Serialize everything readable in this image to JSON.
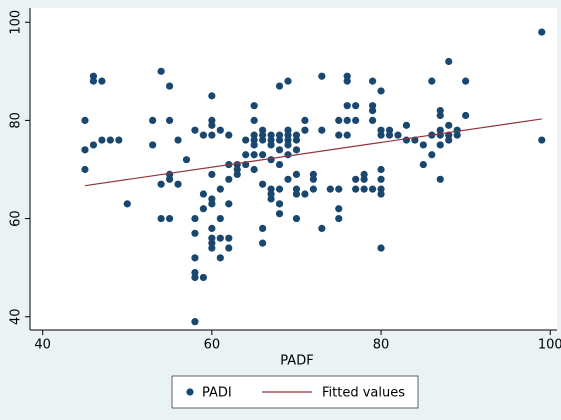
{
  "chart_data": {
    "type": "scatter",
    "xlabel": "PADF",
    "xlim": [
      38.5,
      100.8
    ],
    "ylim": [
      37.3,
      102.9
    ],
    "xticks": [
      40,
      60,
      80,
      100
    ],
    "yticks": [
      40,
      60,
      80,
      100
    ],
    "series": [
      {
        "name": "PADI",
        "style": "markers",
        "color": "#1a476f",
        "x": [
          45,
          45,
          45,
          46,
          46,
          46,
          47,
          47,
          48,
          49,
          50,
          53,
          53,
          54,
          54,
          54,
          55,
          55,
          55,
          55,
          55,
          56,
          56,
          57,
          58,
          58,
          58,
          58,
          58,
          58,
          58,
          59,
          59,
          59,
          59,
          60,
          60,
          60,
          60,
          60,
          60,
          60,
          60,
          60,
          60,
          60,
          61,
          61,
          61,
          61,
          61,
          62,
          62,
          62,
          62,
          62,
          62,
          63,
          63,
          63,
          64,
          64,
          64,
          65,
          65,
          65,
          65,
          65,
          65,
          65,
          66,
          66,
          66,
          66,
          66,
          66,
          66,
          67,
          67,
          67,
          67,
          67,
          67,
          67,
          68,
          68,
          68,
          68,
          68,
          68,
          68,
          68,
          69,
          69,
          69,
          69,
          69,
          69,
          69,
          70,
          70,
          70,
          70,
          70,
          70,
          70,
          71,
          71,
          71,
          72,
          72,
          72,
          73,
          73,
          73,
          74,
          75,
          75,
          75,
          75,
          75,
          76,
          76,
          76,
          76,
          76,
          77,
          77,
          77,
          77,
          78,
          78,
          78,
          79,
          79,
          79,
          79,
          79,
          80,
          80,
          80,
          80,
          80,
          80,
          80,
          80,
          81,
          81,
          82,
          83,
          83,
          84,
          85,
          85,
          86,
          86,
          86,
          87,
          87,
          87,
          87,
          87,
          87,
          88,
          88,
          88,
          88,
          89,
          89,
          90,
          90,
          99,
          99
        ],
        "values": [
          80,
          74,
          70,
          89,
          88,
          75,
          88,
          76,
          76,
          76,
          63,
          80,
          75,
          90,
          67,
          60,
          87,
          80,
          69,
          68,
          60,
          76,
          67,
          72,
          78,
          60,
          57,
          52,
          49,
          48,
          39,
          77,
          65,
          62,
          48,
          85,
          80,
          79,
          77,
          69,
          64,
          63,
          58,
          56,
          55,
          54,
          78,
          66,
          60,
          56,
          52,
          77,
          71,
          68,
          63,
          56,
          54,
          71,
          70,
          69,
          76,
          73,
          71,
          83,
          80,
          77,
          76,
          75,
          73,
          70,
          78,
          77,
          76,
          73,
          67,
          58,
          55,
          77,
          76,
          75,
          72,
          66,
          65,
          64,
          87,
          77,
          76,
          74,
          71,
          66,
          63,
          61,
          88,
          78,
          77,
          76,
          75,
          73,
          68,
          77,
          76,
          74,
          69,
          66,
          65,
          60,
          80,
          78,
          65,
          69,
          68,
          66,
          89,
          78,
          58,
          66,
          80,
          77,
          66,
          62,
          60,
          89,
          88,
          83,
          80,
          77,
          83,
          80,
          68,
          66,
          69,
          68,
          66,
          88,
          83,
          82,
          80,
          66,
          86,
          78,
          77,
          70,
          68,
          66,
          65,
          54,
          78,
          77,
          77,
          79,
          76,
          76,
          75,
          71,
          88,
          77,
          73,
          82,
          81,
          78,
          77,
          75,
          68,
          92,
          79,
          77,
          76,
          78,
          77,
          88,
          81,
          98,
          76
        ]
      },
      {
        "name": "Fitted values",
        "style": "line",
        "color": "#90353b",
        "x": [
          45,
          99
        ],
        "values": [
          66.7,
          80.3
        ]
      }
    ]
  }
}
